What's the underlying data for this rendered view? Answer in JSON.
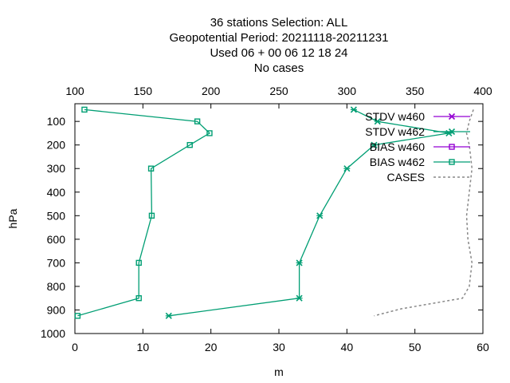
{
  "title_lines": [
    "36 stations Selection: ALL",
    "Geopotential  Period: 20211118-20211231",
    "Used  06  + 00 06 12 18 24",
    "No cases"
  ],
  "chart_data": {
    "type": "line",
    "xlabel": "m",
    "ylabel": "hPa",
    "xlim": [
      0,
      60
    ],
    "ylim": [
      1000,
      25
    ],
    "x2lim": [
      100,
      400
    ],
    "x_ticks": [
      0,
      10,
      20,
      30,
      40,
      50,
      60
    ],
    "x2_ticks": [
      100,
      150,
      200,
      250,
      300,
      350,
      400
    ],
    "y_ticks": [
      100,
      200,
      300,
      400,
      500,
      600,
      700,
      800,
      900,
      1000
    ],
    "legend_position": "top-right",
    "grid": false,
    "series": [
      {
        "name": "STDV w460",
        "color": "#9400d3",
        "marker": "x",
        "axis": "x",
        "points": []
      },
      {
        "name": "STDV w462",
        "color": "#009e73",
        "marker": "x",
        "axis": "x",
        "points": [
          {
            "x": 41.0,
            "y": 50
          },
          {
            "x": 44.5,
            "y": 100
          },
          {
            "x": 55.0,
            "y": 150
          },
          {
            "x": 44.0,
            "y": 200
          },
          {
            "x": 40.0,
            "y": 300
          },
          {
            "x": 36.0,
            "y": 500
          },
          {
            "x": 33.0,
            "y": 700
          },
          {
            "x": 33.0,
            "y": 850
          },
          {
            "x": 13.8,
            "y": 925
          }
        ]
      },
      {
        "name": "BIAS w460",
        "color": "#9400d3",
        "marker": "square",
        "axis": "x",
        "points": []
      },
      {
        "name": "BIAS w462",
        "color": "#009e73",
        "marker": "square",
        "axis": "x",
        "points": [
          {
            "x": 1.4,
            "y": 50
          },
          {
            "x": 18.0,
            "y": 100
          },
          {
            "x": 19.8,
            "y": 150
          },
          {
            "x": 16.9,
            "y": 200
          },
          {
            "x": 11.2,
            "y": 300
          },
          {
            "x": 11.3,
            "y": 500
          },
          {
            "x": 9.4,
            "y": 700
          },
          {
            "x": 9.4,
            "y": 850
          },
          {
            "x": 0.4,
            "y": 925
          }
        ]
      },
      {
        "name": "CASES",
        "color": "#888888",
        "dash": true,
        "axis": "x2",
        "points": [
          {
            "x": 393,
            "y": 50
          },
          {
            "x": 390,
            "y": 100
          },
          {
            "x": 388,
            "y": 150
          },
          {
            "x": 390,
            "y": 200
          },
          {
            "x": 392,
            "y": 300
          },
          {
            "x": 390,
            "y": 400
          },
          {
            "x": 388,
            "y": 500
          },
          {
            "x": 389,
            "y": 600
          },
          {
            "x": 392,
            "y": 700
          },
          {
            "x": 390,
            "y": 800
          },
          {
            "x": 385,
            "y": 850
          },
          {
            "x": 340,
            "y": 895
          },
          {
            "x": 320,
            "y": 925
          }
        ]
      }
    ]
  }
}
